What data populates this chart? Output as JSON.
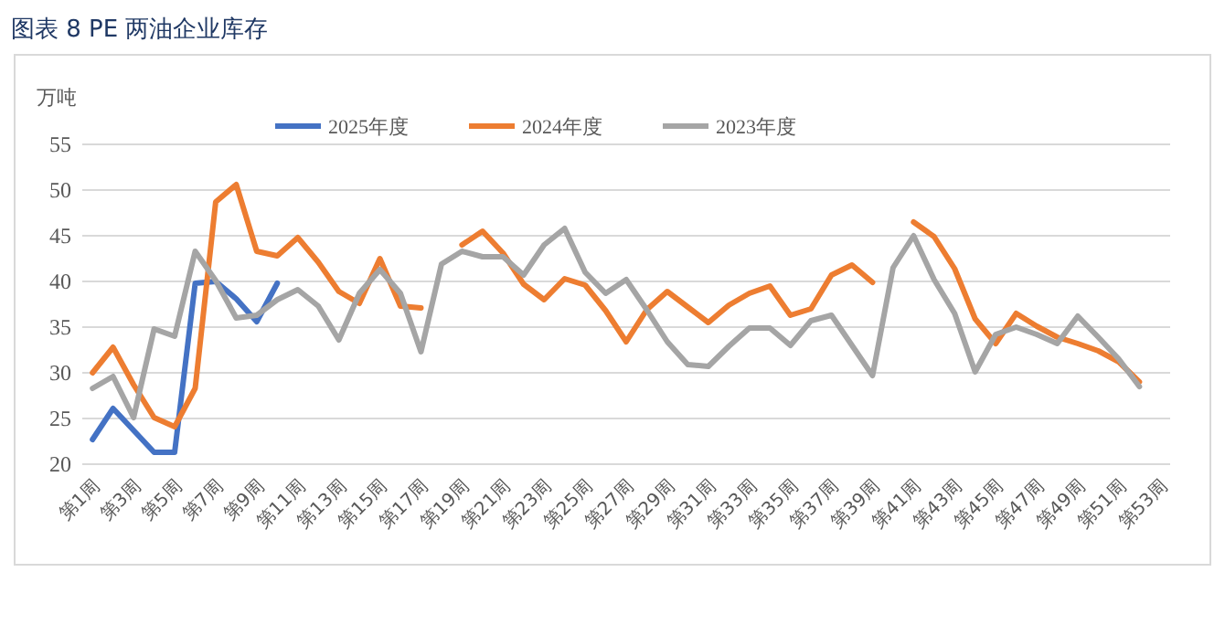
{
  "chart_data": {
    "type": "line",
    "title": "图表 8 PE 两油企业库存",
    "ylabel": "万吨",
    "categories": [
      "第1周",
      null,
      "第3周",
      null,
      "第5周",
      null,
      "第7周",
      null,
      "第9周",
      null,
      "第11周",
      null,
      "第13周",
      null,
      "第15周",
      null,
      "第17周",
      null,
      "第19周",
      null,
      "第21周",
      null,
      "第23周",
      null,
      "第25周",
      null,
      "第27周",
      null,
      "第29周",
      null,
      "第31周",
      null,
      "第33周",
      null,
      "第35周",
      null,
      "第37周",
      null,
      "第39周",
      null,
      "第41周",
      null,
      "第43周",
      null,
      "第45周",
      null,
      "第47周",
      null,
      "第49周",
      null,
      "第51周",
      null,
      "第53周"
    ],
    "series": [
      {
        "name": "2025年度",
        "color": "#4472c4",
        "values": [
          22.7,
          26.1,
          23.7,
          21.3,
          21.3,
          39.8,
          40.0,
          38.1,
          35.6,
          39.8,
          null,
          null,
          null,
          null,
          null,
          null,
          null,
          null,
          null,
          null,
          null,
          null,
          null,
          null,
          null,
          null,
          null,
          null,
          null,
          null,
          null,
          null,
          null,
          null,
          null,
          null,
          null,
          null,
          null,
          null,
          null,
          null,
          null,
          null,
          null,
          null,
          null,
          null,
          null,
          null,
          null,
          null,
          null
        ]
      },
      {
        "name": "2024年度",
        "color": "#ed7d31",
        "values": [
          30.0,
          32.8,
          28.7,
          25.1,
          24.1,
          28.3,
          48.7,
          50.6,
          43.3,
          42.8,
          44.8,
          42.1,
          38.9,
          37.6,
          42.5,
          37.3,
          37.1,
          null,
          44.0,
          45.5,
          43.1,
          39.7,
          38.0,
          40.3,
          39.6,
          36.8,
          33.4,
          36.9,
          38.9,
          37.2,
          35.5,
          37.4,
          38.7,
          39.5,
          36.3,
          37.0,
          40.7,
          41.8,
          39.9,
          null,
          46.5,
          44.9,
          41.4,
          35.9,
          33.2,
          36.5,
          35.1,
          33.9,
          33.2,
          32.4,
          31.2,
          29.0,
          null
        ]
      },
      {
        "name": "2023年度",
        "color": "#a5a5a5",
        "values": [
          28.3,
          29.6,
          25.1,
          34.8,
          34.0,
          43.3,
          40.1,
          36.0,
          36.3,
          38.0,
          39.1,
          37.3,
          33.6,
          38.7,
          41.3,
          38.7,
          32.3,
          41.9,
          43.3,
          42.7,
          42.7,
          40.7,
          44.0,
          45.8,
          41.0,
          38.7,
          40.2,
          36.9,
          33.4,
          30.9,
          30.7,
          32.9,
          34.9,
          34.9,
          33.0,
          35.7,
          36.3,
          33.0,
          29.7,
          41.5,
          45.0,
          40.2,
          36.5,
          30.1,
          34.2,
          35.0,
          34.2,
          33.2,
          36.2,
          33.9,
          31.5,
          28.5,
          null
        ]
      }
    ],
    "ylim": [
      20,
      55
    ],
    "yticks": [
      20,
      25,
      30,
      35,
      40,
      45,
      50,
      55
    ],
    "grid": "y",
    "legend": "top"
  }
}
